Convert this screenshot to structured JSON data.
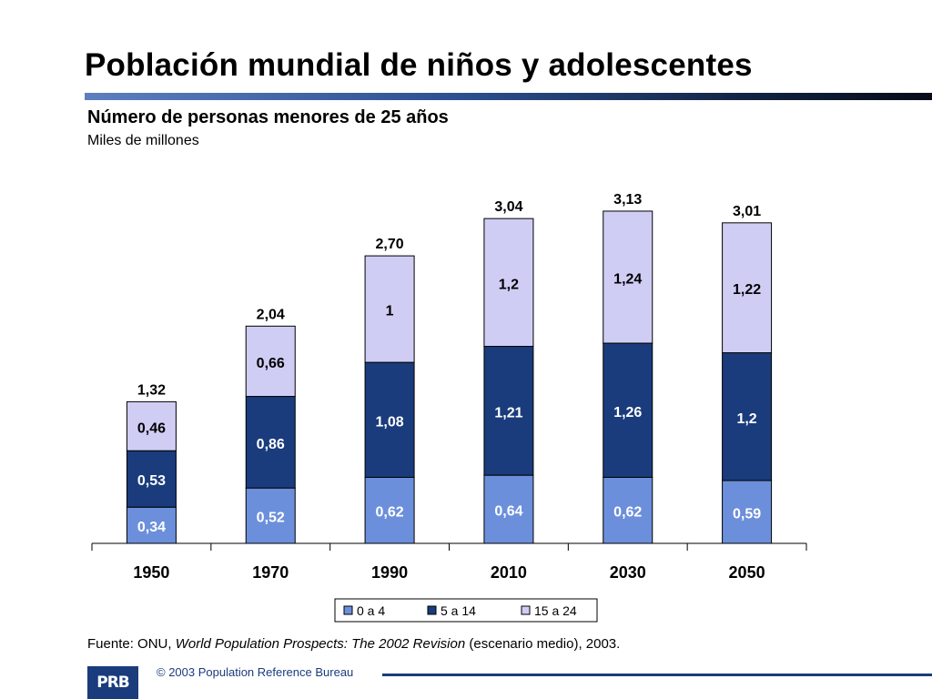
{
  "title": "Población mundial de niños y adolescentes",
  "subtitle": "Número de personas menores de 25 años",
  "unit": "Miles de millones",
  "source": {
    "prefix": "Fuente: ONU, ",
    "work": "World Population Prospects: The 2002 Revision",
    "suffix": " (escenario medio), 2003."
  },
  "footer": {
    "logo_text": "PRB",
    "copyright": "© 2003 Population Reference Bureau"
  },
  "colors": {
    "series": [
      "#6b8fdb",
      "#1a3c7c",
      "#d0cdf5"
    ],
    "series_text": [
      "#ffffff",
      "#ffffff",
      "#000000"
    ]
  },
  "chart_data": {
    "type": "bar",
    "stacked": true,
    "categories": [
      "1950",
      "1970",
      "1990",
      "2010",
      "2030",
      "2050"
    ],
    "series": [
      {
        "name": "0 a 4",
        "values": [
          0.34,
          0.52,
          0.62,
          0.64,
          0.62,
          0.59
        ],
        "labels": [
          "0,34",
          "0,52",
          "0,62",
          "0,64",
          "0,62",
          "0,59"
        ]
      },
      {
        "name": "5 a 14",
        "values": [
          0.53,
          0.86,
          1.08,
          1.21,
          1.26,
          1.2
        ],
        "labels": [
          "0,53",
          "0,86",
          "1,08",
          "1,21",
          "1,26",
          "1,2"
        ]
      },
      {
        "name": "15 a 24",
        "values": [
          0.46,
          0.66,
          1.0,
          1.2,
          1.24,
          1.22
        ],
        "labels": [
          "0,46",
          "0,66",
          "1",
          "1,2",
          "1,24",
          "1,22"
        ]
      }
    ],
    "totals": [
      1.32,
      2.04,
      2.7,
      3.04,
      3.13,
      3.01
    ],
    "total_labels": [
      "1,32",
      "2,04",
      "2,70",
      "3,04",
      "3,13",
      "3,01"
    ],
    "ylim": [
      0,
      3.13
    ],
    "grid": false,
    "legend_position": "bottom"
  }
}
